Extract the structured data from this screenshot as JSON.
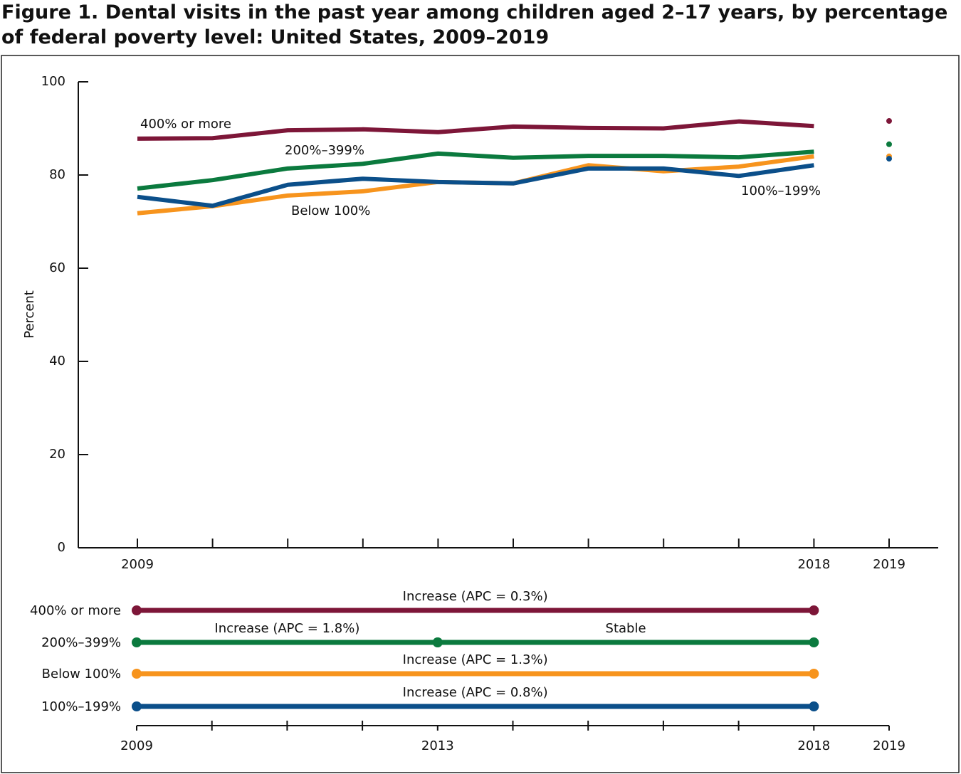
{
  "chart_data": [
    {
      "type": "line",
      "title": "Figure 1. Dental visits in the past year among children aged 2–17 years, by percentage of federal poverty level: United States, 2009–2019",
      "y_label": "Percent",
      "categories": [
        "2009",
        null,
        null,
        null,
        null,
        null,
        null,
        null,
        null,
        "2018",
        "2019"
      ],
      "ylim": [
        0,
        100
      ],
      "yticks": [
        0,
        20,
        40,
        60,
        80,
        100
      ],
      "series": [
        {
          "name": "400% or more",
          "color": "#7d1638",
          "values": [
            87.8,
            87.9,
            89.6,
            89.8,
            89.2,
            90.4,
            90.1,
            90.0,
            91.5,
            90.5,
            91.6
          ]
        },
        {
          "name": "200%–399%",
          "color": "#0b7a3e",
          "values": [
            77.1,
            78.9,
            81.4,
            82.4,
            84.6,
            83.7,
            84.1,
            84.1,
            83.8,
            85.0,
            86.6
          ]
        },
        {
          "name": "Below 100%",
          "color": "#f7941d",
          "values": [
            71.8,
            73.3,
            75.6,
            76.5,
            78.5,
            78.2,
            82.1,
            80.8,
            81.8,
            84.0,
            84.0
          ]
        },
        {
          "name": "100%–199%",
          "color": "#0b4f8a",
          "values": [
            75.3,
            73.4,
            77.9,
            79.2,
            78.5,
            78.2,
            81.4,
            81.4,
            79.8,
            82.1,
            83.5
          ]
        }
      ]
    },
    {
      "type": "timeline",
      "xlim": [
        2009,
        2019
      ],
      "xticks": [
        2009,
        2013,
        2018,
        2019
      ],
      "x_minor_ticks": [
        2010,
        2011,
        2012,
        2014,
        2015,
        2016,
        2017
      ],
      "rows": [
        {
          "name": "400% or more",
          "color": "#7d1638",
          "segments": [
            {
              "start": 2009,
              "end": 2018,
              "label": "Increase (APC = 0.3%)"
            }
          ]
        },
        {
          "name": "200%–399%",
          "color": "#0b7a3e",
          "segments": [
            {
              "start": 2009,
              "end": 2013,
              "label": "Increase (APC = 1.8%)"
            },
            {
              "start": 2013,
              "end": 2018,
              "label": "Stable"
            }
          ]
        },
        {
          "name": "Below 100%",
          "color": "#f7941d",
          "segments": [
            {
              "start": 2009,
              "end": 2018,
              "label": "Increase (APC = 1.3%)"
            }
          ]
        },
        {
          "name": "100%–199%",
          "color": "#0b4f8a",
          "segments": [
            {
              "start": 2009,
              "end": 2018,
              "label": "Increase (APC = 0.8%)"
            }
          ]
        }
      ]
    }
  ]
}
